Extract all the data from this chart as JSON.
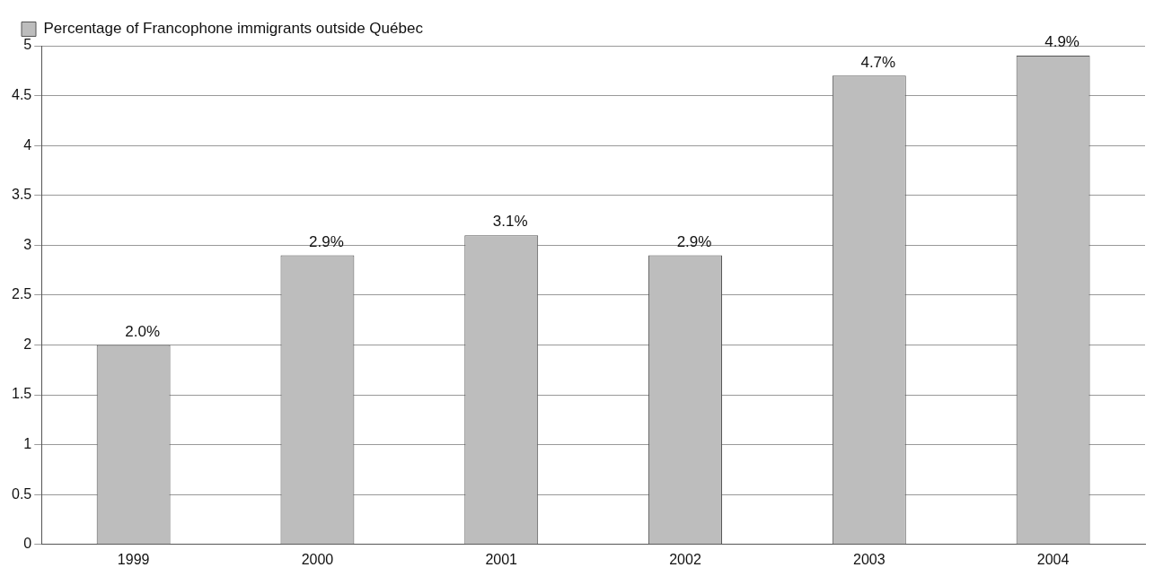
{
  "chart_data": {
    "type": "bar",
    "categories": [
      "1999",
      "2000",
      "2001",
      "2002",
      "2003",
      "2004"
    ],
    "series": [
      {
        "name": "Percentage of Francophone immigrants outside Québec",
        "color": "#bdbdbd",
        "values": [
          2.0,
          2.9,
          3.1,
          2.9,
          4.7,
          4.9
        ],
        "value_labels": [
          "2.0%",
          "2.9%",
          "3.1%",
          "2.9%",
          "4.7%",
          "4.9%"
        ]
      }
    ],
    "ylim": [
      0,
      5
    ],
    "yticks": [
      0,
      0.5,
      1,
      1.5,
      2,
      2.5,
      3,
      3.5,
      4,
      4.5,
      5
    ],
    "grid": "y",
    "legend": "top left"
  }
}
